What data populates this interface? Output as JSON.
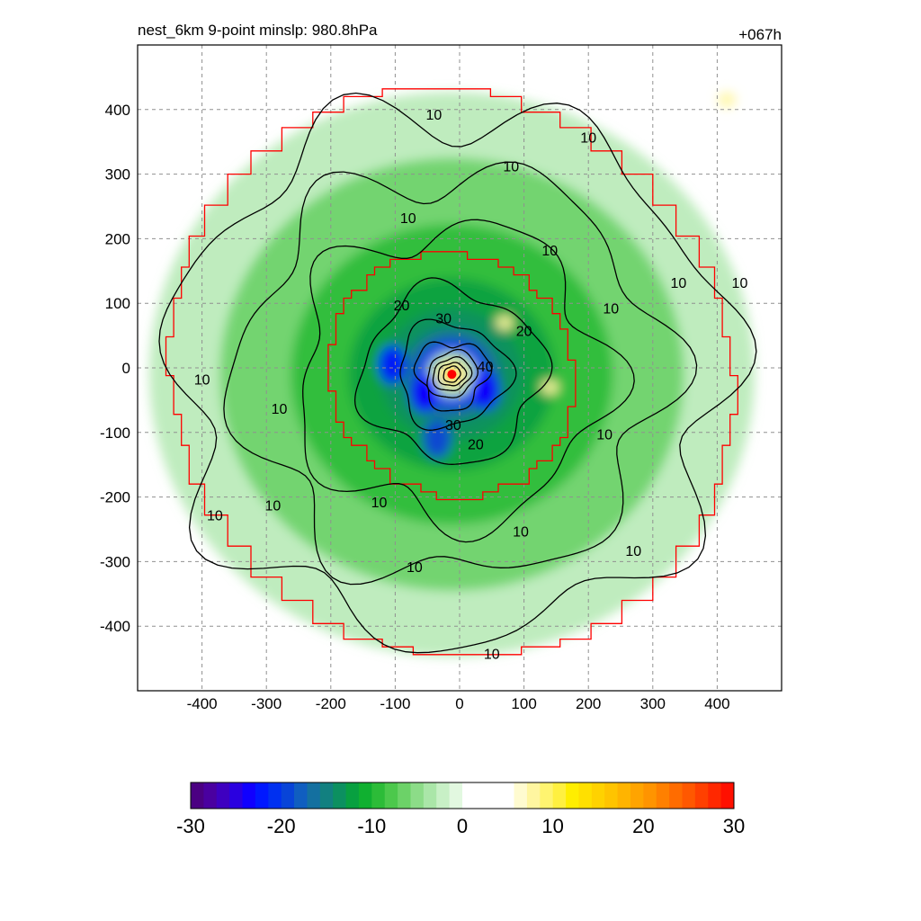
{
  "chart_data": {
    "type": "heatmap",
    "title_left": "nest_6km  9-point minslp: 980.8hPa",
    "title_right": "+067h",
    "xlim": [
      -500,
      500
    ],
    "ylim": [
      -500,
      500
    ],
    "x_ticks": [
      -400,
      -300,
      -200,
      -100,
      0,
      100,
      200,
      300,
      400
    ],
    "y_ticks": [
      400,
      300,
      200,
      100,
      0,
      -100,
      -200,
      -300,
      -400
    ],
    "grid": true,
    "grid_style": "dashed gray",
    "center": {
      "x": -12,
      "y": -10,
      "color": "#ff0000"
    },
    "shaded_field": {
      "description_levels": "filled contours",
      "rings": [
        {
          "radius": 470,
          "value": -4
        },
        {
          "radius": 360,
          "value": -6
        },
        {
          "radius": 250,
          "value": -9
        },
        {
          "radius": 160,
          "value": -12
        },
        {
          "radius": 110,
          "value": -14
        },
        {
          "radius": 75,
          "value": -17
        },
        {
          "radius": 55,
          "value": -22
        },
        {
          "radius": 40,
          "value": -4
        },
        {
          "radius": 25,
          "value": 8
        },
        {
          "radius": 12,
          "value": 16
        }
      ],
      "blue_patches": [
        {
          "x": -105,
          "y": 5,
          "value": -22
        },
        {
          "x": -55,
          "y": -40,
          "value": -24
        },
        {
          "x": 40,
          "y": -35,
          "value": -23
        },
        {
          "x": -35,
          "y": -110,
          "value": -20
        }
      ],
      "yellow_patches": [
        {
          "x": 70,
          "y": 70,
          "value": 8
        },
        {
          "x": 140,
          "y": -30,
          "value": 8
        },
        {
          "x": 415,
          "y": 415,
          "value": 8
        }
      ]
    },
    "contour_labels": [
      {
        "text": "10",
        "x": -40,
        "y": 390
      },
      {
        "text": "10",
        "x": 200,
        "y": 355
      },
      {
        "text": "10",
        "x": 80,
        "y": 310
      },
      {
        "text": "10",
        "x": -80,
        "y": 230
      },
      {
        "text": "10",
        "x": 140,
        "y": 180
      },
      {
        "text": "10",
        "x": 340,
        "y": 130
      },
      {
        "text": "10",
        "x": 435,
        "y": 130
      },
      {
        "text": "10",
        "x": 235,
        "y": 90
      },
      {
        "text": "20",
        "x": -90,
        "y": 95
      },
      {
        "text": "30",
        "x": -25,
        "y": 75
      },
      {
        "text": "20",
        "x": 100,
        "y": 55
      },
      {
        "text": "40",
        "x": 40,
        "y": 0
      },
      {
        "text": "10",
        "x": -400,
        "y": -20
      },
      {
        "text": "10",
        "x": -280,
        "y": -65
      },
      {
        "text": "30",
        "x": -10,
        "y": -90
      },
      {
        "text": "20",
        "x": 25,
        "y": -120
      },
      {
        "text": "10",
        "x": 225,
        "y": -105
      },
      {
        "text": "10",
        "x": -125,
        "y": -210
      },
      {
        "text": "10",
        "x": -380,
        "y": -230
      },
      {
        "text": "10",
        "x": -290,
        "y": -215
      },
      {
        "text": "10",
        "x": 95,
        "y": -255
      },
      {
        "text": "10",
        "x": -70,
        "y": -310
      },
      {
        "text": "10",
        "x": 270,
        "y": -285
      },
      {
        "text": "10",
        "x": 50,
        "y": -445
      }
    ],
    "colorbar": {
      "min": -30,
      "max": 30,
      "tick_labels": [
        "-30",
        "-20",
        "-10",
        "0",
        "10",
        "20",
        "30"
      ],
      "colors": [
        "#4b0082",
        "#4a00a0",
        "#3e00c0",
        "#2a00e0",
        "#1000ff",
        "#0018ff",
        "#0030f0",
        "#0844d8",
        "#105ec0",
        "#1470a0",
        "#128080",
        "#0c9060",
        "#08a040",
        "#10b030",
        "#2cbc38",
        "#4cc84c",
        "#6cd268",
        "#8cdc88",
        "#aae6a8",
        "#c8f0c6",
        "#e2f8e0",
        "#ffffff",
        "#ffffff",
        "#ffffff",
        "#ffffff",
        "#fffbd0",
        "#fff6a0",
        "#fff470",
        "#fff040",
        "#ffee00",
        "#ffe000",
        "#ffd200",
        "#ffc400",
        "#ffb400",
        "#ffa400",
        "#ff9400",
        "#ff8000",
        "#ff6c00",
        "#ff5800",
        "#ff4000",
        "#ff2800",
        "#ff1000"
      ]
    },
    "red_boundary_inner_radius": 190,
    "red_boundary_outer_radius": 440
  }
}
